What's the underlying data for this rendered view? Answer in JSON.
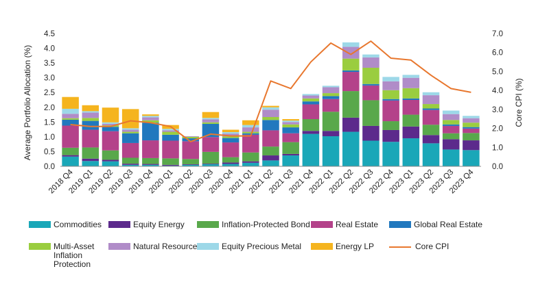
{
  "chart_data": {
    "type": "bar",
    "stacked": true,
    "title": "",
    "xlabel": "",
    "ylabel": "Average Portfolio Allocation (%)",
    "y2label": "Core CPI (%)",
    "ylim": [
      0,
      4.5
    ],
    "y2lim": [
      0,
      7.0
    ],
    "yticks": [
      "0.0",
      "0.5",
      "1.0",
      "1.5",
      "2.0",
      "2.5",
      "3.0",
      "3.5",
      "4.0",
      "4.5"
    ],
    "y2ticks": [
      "0.0",
      "1.0",
      "2.0",
      "3.0",
      "4.0",
      "5.0",
      "6.0",
      "7.0"
    ],
    "grid": false,
    "legend_position": "bottom",
    "categories": [
      "2018 Q4",
      "2019 Q1",
      "2019 Q2",
      "2019 Q3",
      "2019 Q4",
      "2020 Q1",
      "2020 Q2",
      "2020 Q3",
      "2020 Q4",
      "2021 Q1",
      "2021 Q2",
      "2021 Q3",
      "2021 Q4",
      "2022 Q1",
      "2022 Q2",
      "2022 Q3",
      "2022 Q4",
      "2023 Q1",
      "2023 Q2",
      "2023 Q3",
      "2023 Q4"
    ],
    "series": [
      {
        "name": "Commodities",
        "color": "#1aa7b8",
        "values": [
          0.33,
          0.18,
          0.17,
          0.05,
          0.05,
          0.02,
          0.05,
          0.07,
          0.08,
          0.12,
          0.2,
          0.37,
          1.1,
          1.02,
          1.17,
          0.87,
          0.83,
          0.95,
          0.78,
          0.57,
          0.55
        ]
      },
      {
        "name": "Equity Energy",
        "color": "#5c2a8c",
        "values": [
          0.05,
          0.08,
          0.05,
          0.04,
          0.03,
          0.03,
          0.02,
          0.02,
          0.05,
          0.05,
          0.17,
          0.05,
          0.1,
          0.18,
          0.48,
          0.5,
          0.4,
          0.4,
          0.28,
          0.35,
          0.33
        ]
      },
      {
        "name": "Inflation-Protected Bond",
        "color": "#59a84b",
        "values": [
          0.25,
          0.38,
          0.32,
          0.2,
          0.2,
          0.22,
          0.18,
          0.4,
          0.18,
          0.3,
          0.3,
          0.4,
          0.4,
          0.65,
          0.9,
          0.87,
          0.3,
          0.4,
          0.35,
          0.2,
          0.25
        ]
      },
      {
        "name": "Real Estate",
        "color": "#b4428a",
        "values": [
          0.75,
          0.6,
          0.65,
          0.5,
          0.6,
          0.6,
          0.6,
          0.5,
          0.5,
          0.6,
          0.55,
          0.3,
          0.5,
          0.43,
          0.65,
          0.5,
          0.7,
          0.5,
          0.5,
          0.25,
          0.15
        ]
      },
      {
        "name": "Global Real Estate",
        "color": "#2178be",
        "values": [
          0.2,
          0.3,
          0.15,
          0.33,
          0.6,
          0.2,
          0.1,
          0.45,
          0.15,
          0.05,
          0.35,
          0.2,
          0.1,
          0.1,
          0.05,
          0.05,
          0.05,
          0.05,
          0.05,
          0.05,
          0.05
        ]
      },
      {
        "name": "Multi-Asset Inflation Protection",
        "color": "#9acd3f",
        "values": [
          0.05,
          0.1,
          0.05,
          0.05,
          0.08,
          0.1,
          0.05,
          0.05,
          0.05,
          0.05,
          0.1,
          0.1,
          0.1,
          0.1,
          0.4,
          0.55,
          0.3,
          0.35,
          0.15,
          0.15,
          0.15
        ]
      },
      {
        "name": "Natural Resources",
        "color": "#b08cc8",
        "values": [
          0.15,
          0.18,
          0.05,
          0.07,
          0.1,
          0.05,
          0.02,
          0.1,
          0.1,
          0.15,
          0.25,
          0.08,
          0.1,
          0.2,
          0.4,
          0.35,
          0.3,
          0.35,
          0.3,
          0.2,
          0.15
        ]
      },
      {
        "name": "Equity Precious Metal",
        "color": "#9dd8e8",
        "values": [
          0.17,
          0.05,
          0.05,
          0.05,
          0.05,
          0.05,
          0.0,
          0.05,
          0.05,
          0.08,
          0.08,
          0.05,
          0.05,
          0.05,
          0.15,
          0.1,
          0.15,
          0.1,
          0.1,
          0.12,
          0.08
        ]
      },
      {
        "name": "Energy LP",
        "color": "#f5b41e",
        "values": [
          0.4,
          0.2,
          0.5,
          0.65,
          0.05,
          0.13,
          0.0,
          0.2,
          0.08,
          0.16,
          0.05,
          0.05,
          0.0,
          0.0,
          0.0,
          0.0,
          0.0,
          0.0,
          0.0,
          0.0,
          0.0
        ]
      }
    ],
    "line": {
      "name": "Core CPI",
      "color": "#e8772e",
      "axis": "right",
      "values": [
        2.2,
        2.1,
        2.1,
        2.4,
        2.3,
        2.1,
        1.3,
        1.7,
        1.6,
        1.6,
        4.5,
        4.1,
        5.5,
        6.5,
        5.9,
        6.6,
        5.7,
        5.6,
        4.8,
        4.1,
        3.9
      ]
    }
  }
}
